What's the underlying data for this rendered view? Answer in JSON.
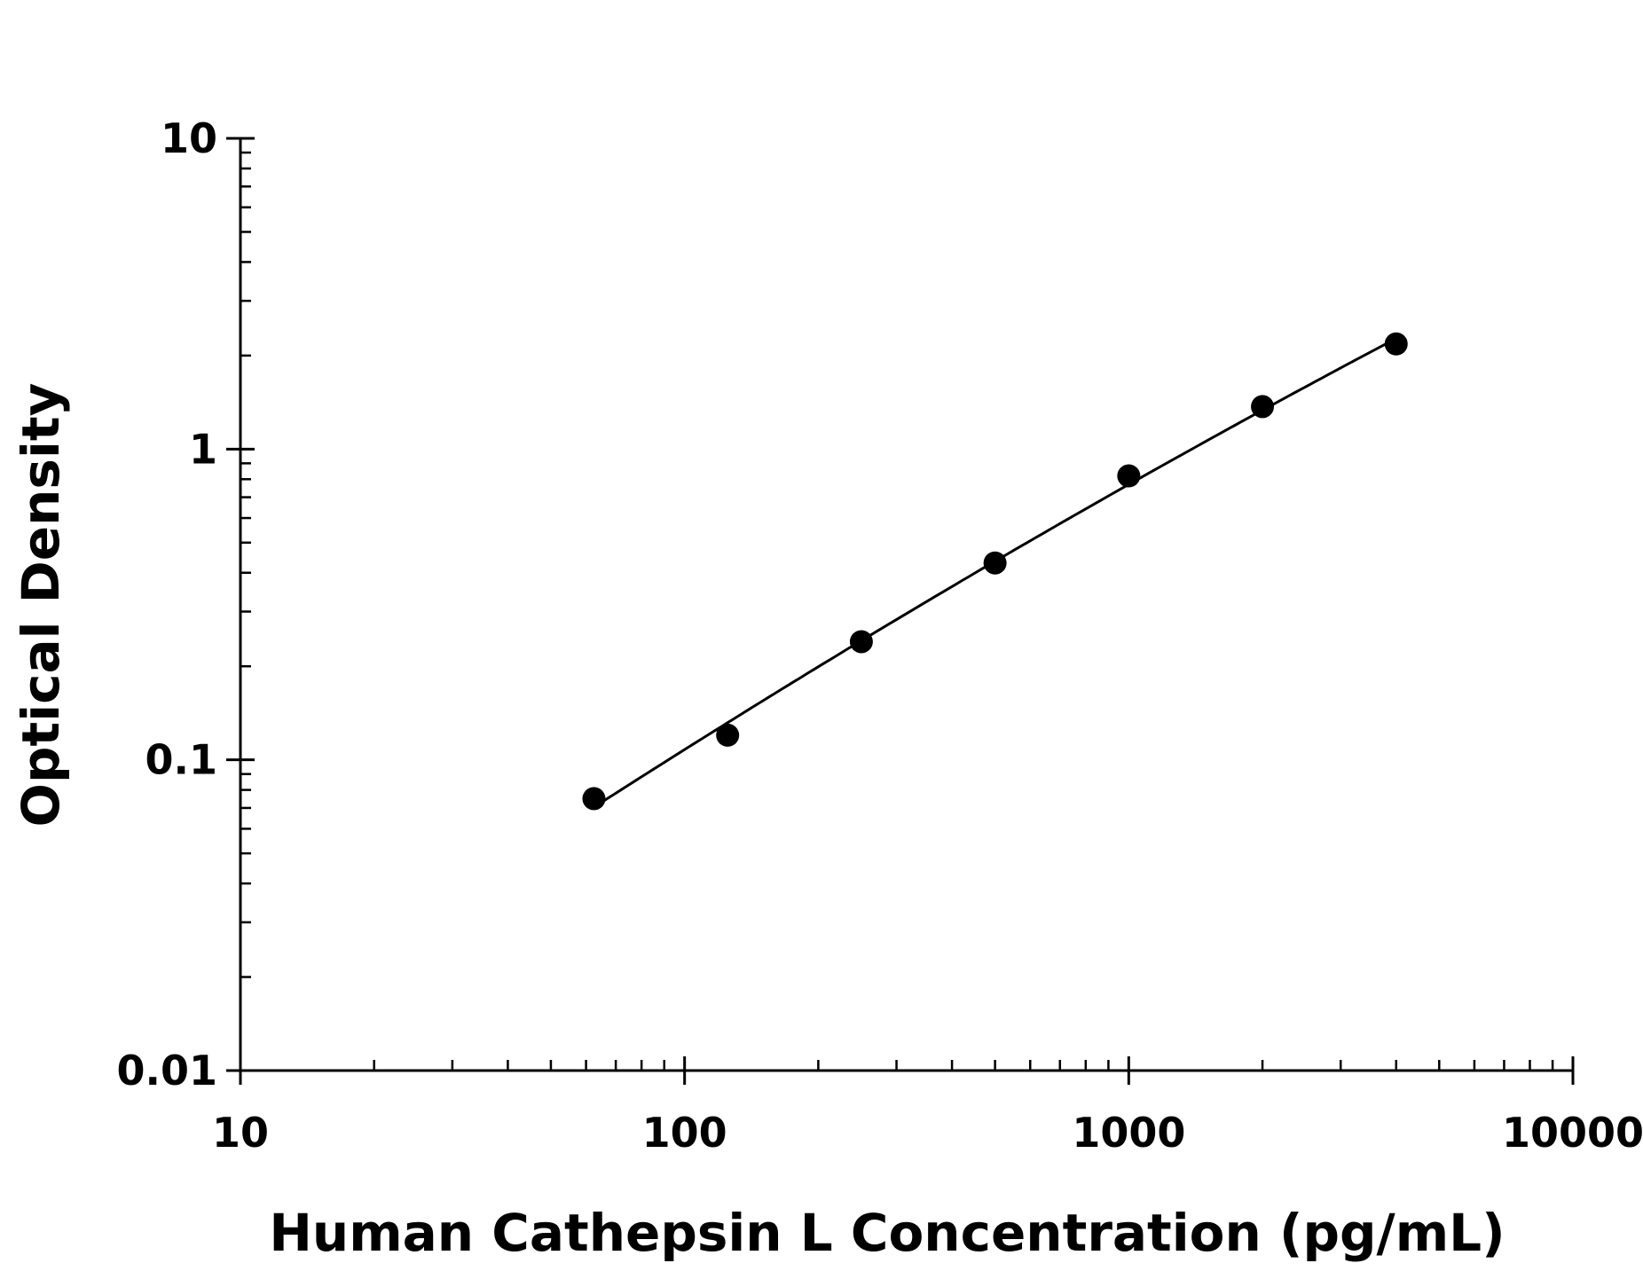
{
  "chart_data": {
    "type": "scatter",
    "title": "",
    "xlabel": "Human Cathepsin L Concentration (pg/mL)",
    "ylabel": "Optical Density",
    "x_scale": "log",
    "y_scale": "log",
    "xlim": [
      10,
      10000
    ],
    "ylim": [
      0.01,
      10
    ],
    "x_ticks": [
      10,
      100,
      1000,
      10000
    ],
    "x_tick_labels": [
      "10",
      "100",
      "1000",
      "10000"
    ],
    "y_ticks": [
      0.01,
      0.1,
      1,
      10
    ],
    "y_tick_labels": [
      "0.01",
      "0.1",
      "1",
      "10"
    ],
    "grid": false,
    "legend": false,
    "colors": {
      "points": "#000000",
      "line": "#000000",
      "axes": "#000000"
    },
    "series": [
      {
        "x": [
          62.5,
          125,
          250,
          500,
          1000,
          2000,
          4000
        ],
        "y": [
          0.075,
          0.12,
          0.24,
          0.43,
          0.82,
          1.37,
          2.18
        ],
        "marker": "filled-circle",
        "fit_line": true
      }
    ]
  }
}
